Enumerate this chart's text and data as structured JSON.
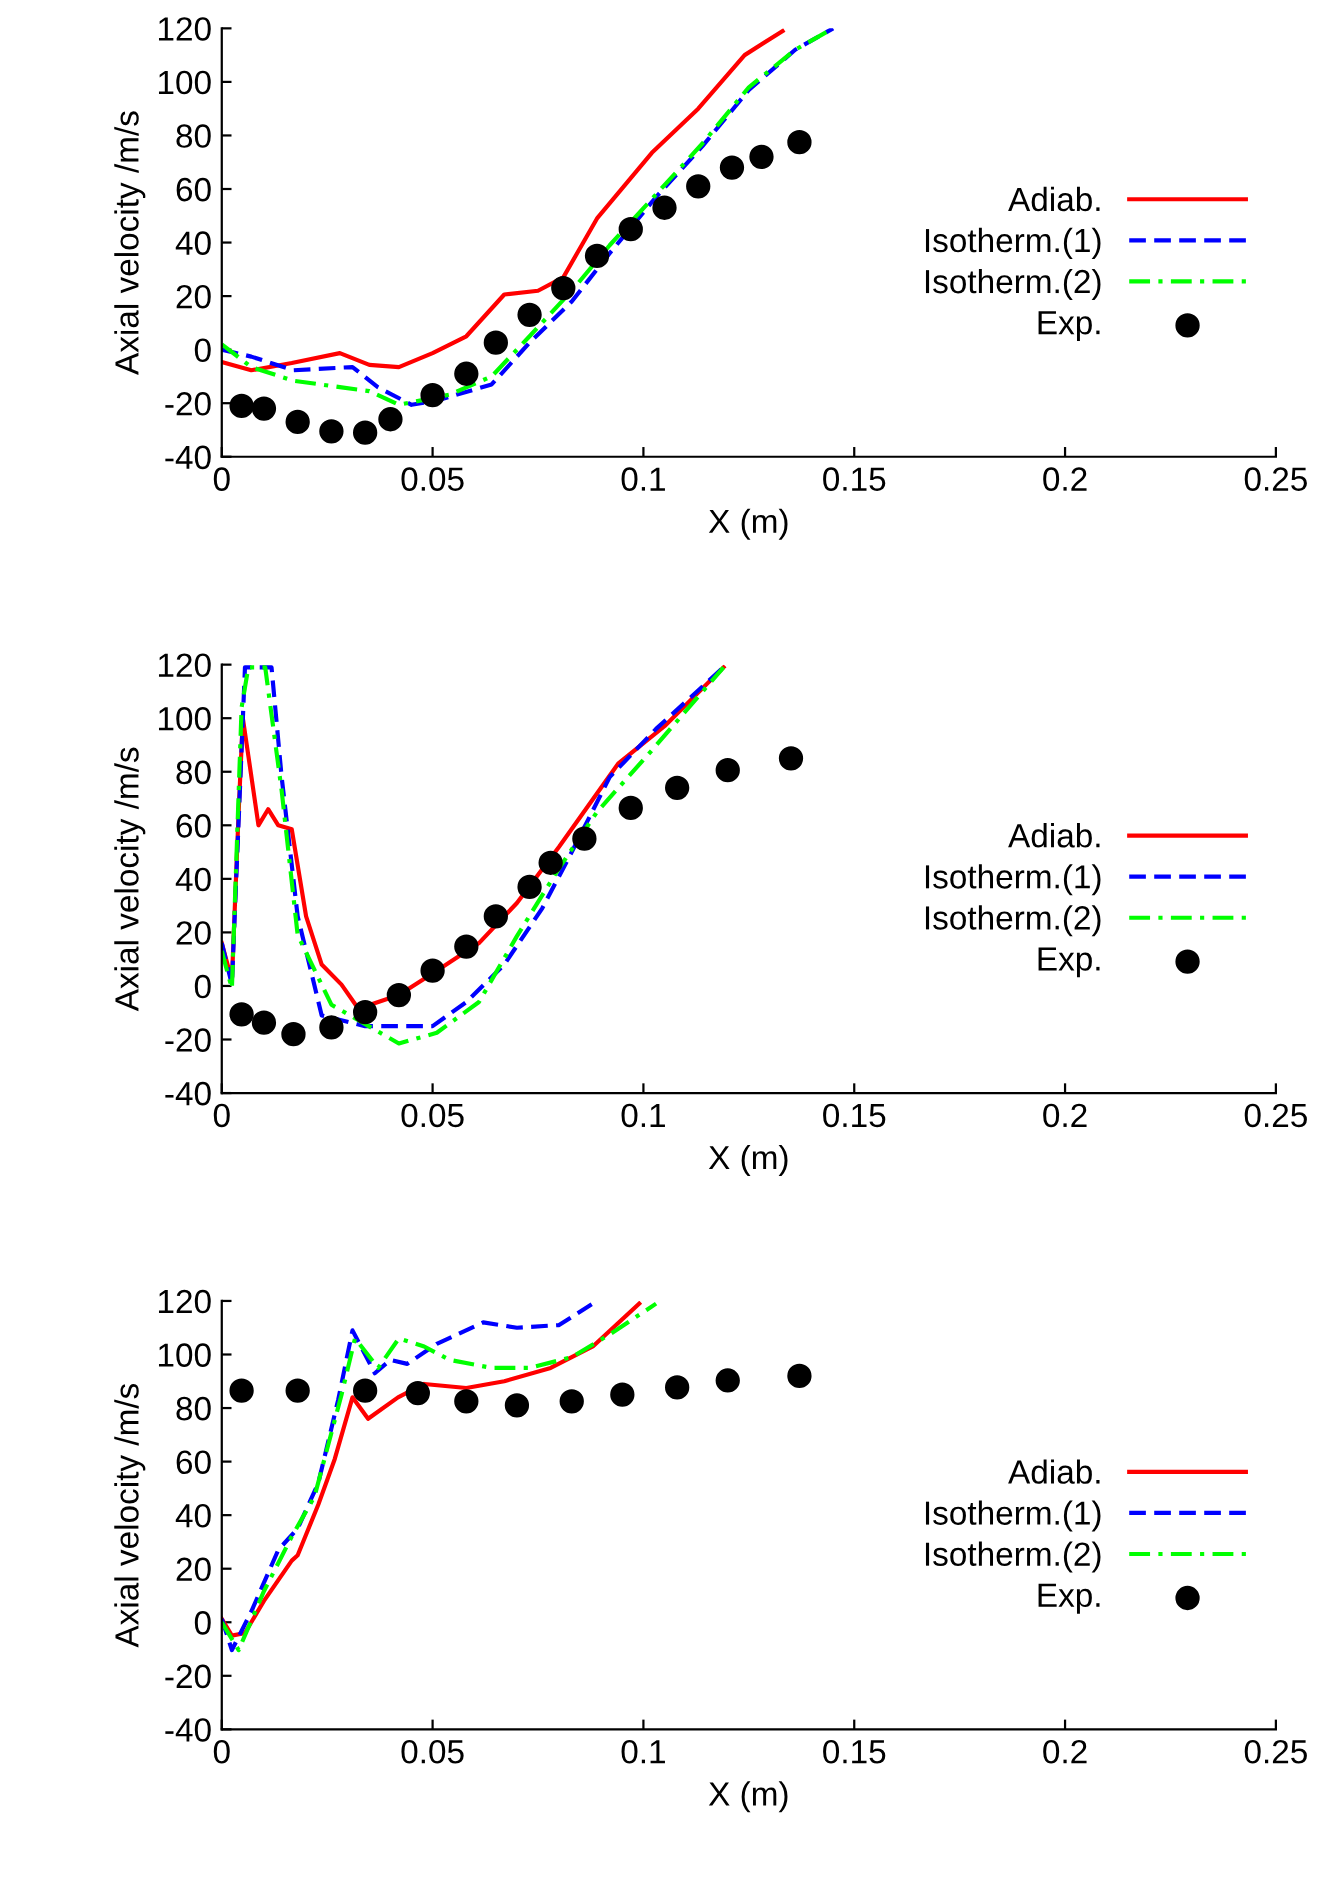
{
  "chart_data": [
    {
      "type": "line",
      "xlabel": "X (m)",
      "ylabel": "Axial velocity /m/s",
      "xlim": [
        0,
        0.25
      ],
      "ylim": [
        -40,
        120
      ],
      "xticks": [
        0,
        0.05,
        0.1,
        0.15,
        0.2,
        0.25
      ],
      "yticks": [
        -40,
        -20,
        0,
        20,
        40,
        60,
        80,
        100,
        120
      ],
      "grid": false,
      "legend": "bottom right",
      "series": [
        {
          "name": "Adiab.",
          "color": "#ff0000",
          "line_style": "solid",
          "marker": "none",
          "x": [
            0,
            0.007,
            0.0166,
            0.028,
            0.035,
            0.042,
            0.05,
            0.058,
            0.067,
            0.075,
            0.081,
            0.089,
            0.102,
            0.113,
            0.124,
            0.133
          ],
          "values": [
            -4.6,
            -7.7,
            -5,
            -1.3,
            -5.7,
            -6.5,
            -1.3,
            5,
            20.6,
            22,
            27,
            49,
            73.5,
            90,
            110,
            119
          ]
        },
        {
          "name": "Isotherm.(1)",
          "color": "#0000ff",
          "line_style": "dashed",
          "marker": "none",
          "x": [
            0,
            0.007,
            0.017,
            0.031,
            0.037,
            0.045,
            0.051,
            0.064,
            0.073,
            0.083,
            0.092,
            0.103,
            0.114,
            0.125,
            0.136,
            0.145
          ],
          "values": [
            0,
            -2.6,
            -7.7,
            -6.5,
            -14,
            -20.6,
            -19,
            -13,
            2.6,
            18,
            36,
            57,
            76,
            97,
            112,
            120
          ]
        },
        {
          "name": "Isotherm.(2)",
          "color": "#00ff00",
          "line_style": "dashdot",
          "marker": "none",
          "x": [
            0,
            0.007,
            0.017,
            0.028,
            0.035,
            0.042,
            0.054,
            0.064,
            0.073,
            0.083,
            0.092,
            0.103,
            0.114,
            0.125,
            0.136,
            0.145
          ],
          "values": [
            2,
            -6.5,
            -11.6,
            -14,
            -15.5,
            -20.6,
            -16.8,
            -10,
            5,
            22,
            39,
            58,
            77,
            98,
            112,
            120
          ]
        },
        {
          "name": "Exp.",
          "type": "scatter",
          "color": "#000000",
          "marker": "circle",
          "x": [
            0.0047,
            0.01,
            0.018,
            0.026,
            0.034,
            0.04,
            0.05,
            0.058,
            0.065,
            0.073,
            0.081,
            0.089,
            0.097,
            0.105,
            0.113,
            0.121,
            0.128,
            0.137
          ],
          "values": [
            -21,
            -22,
            -27,
            -30.5,
            -31,
            -26,
            -17,
            -9,
            2.6,
            13,
            23,
            35,
            45,
            53,
            61,
            68,
            72,
            77.5
          ]
        }
      ]
    },
    {
      "type": "line",
      "xlabel": "X (m)",
      "ylabel": "Axial velocity /m/s",
      "xlim": [
        0,
        0.25
      ],
      "ylim": [
        -40,
        120
      ],
      "xticks": [
        0,
        0.05,
        0.1,
        0.15,
        0.2,
        0.25
      ],
      "yticks": [
        -40,
        -20,
        0,
        20,
        40,
        60,
        80,
        100,
        120
      ],
      "grid": false,
      "legend": "bottom right",
      "series": [
        {
          "name": "Adiab.",
          "color": "#ff0000",
          "line_style": "solid",
          "marker": "none",
          "x": [
            0,
            0.0024,
            0.004,
            0.005,
            0.0063,
            0.0087,
            0.011,
            0.0134,
            0.0166,
            0.02,
            0.0237,
            0.0284,
            0.0324,
            0.042,
            0.051,
            0.061,
            0.07,
            0.08,
            0.094,
            0.105,
            0.119
          ],
          "values": [
            16,
            2,
            65,
            100,
            86,
            60,
            66,
            60,
            58.5,
            26,
            8,
            0.5,
            -8.5,
            -3.4,
            5.7,
            16,
            31,
            52,
            83,
            97,
            119
          ]
        },
        {
          "name": "Isotherm.(1)",
          "color": "#0000ff",
          "line_style": "dashed",
          "marker": "none",
          "x": [
            0,
            0.0024,
            0.0055,
            0.008,
            0.0118,
            0.0142,
            0.018,
            0.0237,
            0.034,
            0.05,
            0.058,
            0.067,
            0.076,
            0.083,
            0.092,
            0.103,
            0.119
          ],
          "values": [
            16,
            0.5,
            119,
            119,
            119,
            78,
            26,
            -11,
            -15,
            -15,
            -6,
            8,
            29,
            50,
            78,
            96,
            119
          ]
        },
        {
          "name": "Isotherm.(2)",
          "color": "#00ff00",
          "line_style": "dashdot",
          "marker": "none",
          "x": [
            0,
            0.0024,
            0.0047,
            0.0063,
            0.0103,
            0.0142,
            0.018,
            0.026,
            0.042,
            0.051,
            0.061,
            0.07,
            0.08,
            0.089,
            0.102,
            0.119
          ],
          "values": [
            13,
            -1,
            104,
            119,
            119,
            73,
            19,
            -7,
            -21.5,
            -17.5,
            -6,
            18.6,
            44,
            65,
            88,
            119
          ]
        },
        {
          "name": "Exp.",
          "type": "scatter",
          "color": "#000000",
          "marker": "circle",
          "x": [
            0.0047,
            0.01,
            0.017,
            0.026,
            0.034,
            0.042,
            0.05,
            0.058,
            0.065,
            0.073,
            0.078,
            0.086,
            0.097,
            0.108,
            0.12,
            0.135
          ],
          "values": [
            -10.6,
            -13.7,
            -18,
            -15.5,
            -9.8,
            -3.4,
            5.7,
            14.7,
            26,
            37,
            46,
            55,
            66.5,
            74,
            80.6,
            85
          ]
        }
      ]
    },
    {
      "type": "line",
      "xlabel": "X (m)",
      "ylabel": "Axial velocity /m/s",
      "xlim": [
        0,
        0.25
      ],
      "ylim": [
        -40,
        120
      ],
      "xticks": [
        0,
        0.05,
        0.1,
        0.15,
        0.2,
        0.25
      ],
      "yticks": [
        -40,
        -20,
        0,
        20,
        40,
        60,
        80,
        100,
        120
      ],
      "grid": false,
      "legend": "bottom right",
      "series": [
        {
          "name": "Adiab.",
          "color": "#ff0000",
          "line_style": "solid",
          "marker": "none",
          "x": [
            0,
            0.0024,
            0.0055,
            0.01,
            0.0166,
            0.018,
            0.0229,
            0.0268,
            0.031,
            0.0347,
            0.0418,
            0.048,
            0.058,
            0.067,
            0.078,
            0.088,
            0.099
          ],
          "values": [
            1.3,
            -5,
            -4,
            8,
            23,
            25,
            44,
            61,
            84,
            76,
            84,
            89,
            87.5,
            90,
            95,
            103,
            119
          ]
        },
        {
          "name": "Isotherm.(1)",
          "color": "#0000ff",
          "line_style": "dashed",
          "marker": "none",
          "x": [
            0,
            0.0024,
            0.007,
            0.0134,
            0.018,
            0.0229,
            0.0276,
            0.031,
            0.0363,
            0.04,
            0.044,
            0.051,
            0.062,
            0.07,
            0.08,
            0.088
          ],
          "values": [
            1.3,
            -10.4,
            4,
            27,
            35,
            52,
            83,
            109,
            93,
            98,
            96.5,
            104,
            112,
            110,
            111,
            119
          ]
        },
        {
          "name": "Isotherm.(2)",
          "color": "#00ff00",
          "line_style": "dashdot",
          "marker": "none",
          "x": [
            0,
            0.004,
            0.01,
            0.0166,
            0.022,
            0.0284,
            0.0316,
            0.0371,
            0.042,
            0.048,
            0.054,
            0.064,
            0.073,
            0.083,
            0.092,
            0.103
          ],
          "values": [
            0,
            -10.4,
            11.6,
            32,
            47,
            85,
            106,
            95,
            106,
            103,
            98,
            95,
            95,
            99,
            107.5,
            119
          ]
        },
        {
          "name": "Exp.",
          "type": "scatter",
          "color": "#000000",
          "marker": "circle",
          "x": [
            0.0047,
            0.018,
            0.034,
            0.0465,
            0.058,
            0.07,
            0.083,
            0.095,
            0.108,
            0.12,
            0.137
          ],
          "values": [
            86.5,
            86.5,
            86.5,
            85.6,
            82.5,
            81,
            82.5,
            85,
            87.7,
            90.3,
            92
          ]
        }
      ]
    }
  ]
}
